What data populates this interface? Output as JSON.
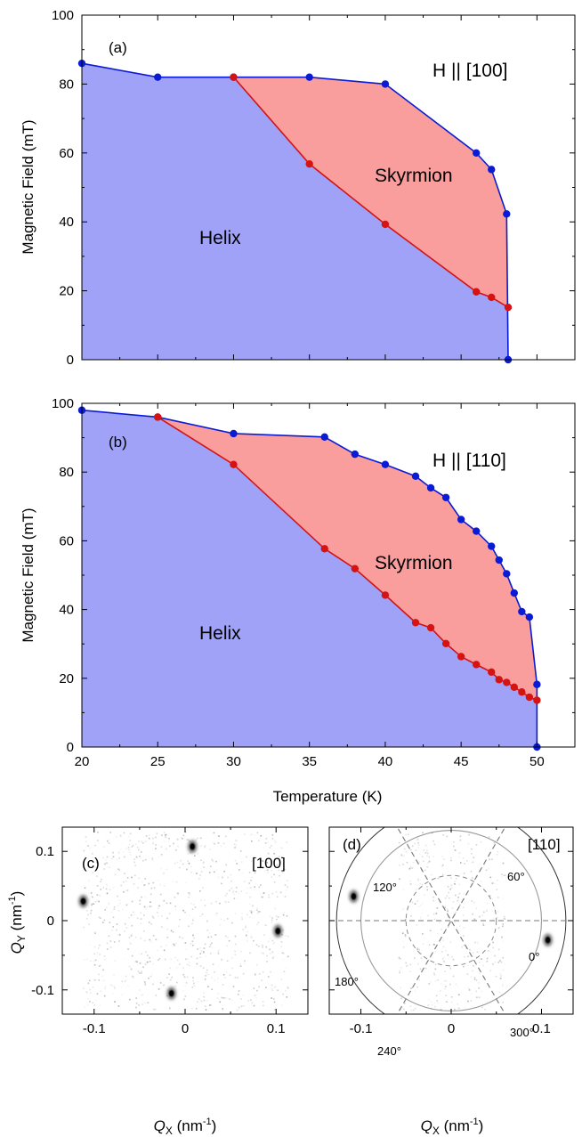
{
  "chart_data": [
    {
      "panel": "(a)",
      "type": "area",
      "annotation": "H || [100]",
      "ylabel": "Magnetic Field (mT)",
      "xlabel": "",
      "xlim": [
        20,
        52.5
      ],
      "ylim": [
        0,
        100
      ],
      "yticks": [
        "0",
        "20",
        "40",
        "60",
        "80",
        "100"
      ],
      "regions": [
        "Helix",
        "Skyrmion"
      ],
      "series": [
        {
          "name": "upper boundary",
          "color": "#0a1bd6",
          "x": [
            20,
            25,
            30,
            35,
            40,
            46,
            47,
            48,
            48.1
          ],
          "y": [
            86,
            82,
            82,
            82,
            80,
            60,
            55.2,
            42.3,
            0
          ]
        },
        {
          "name": "lower boundary",
          "color": "#d51313",
          "x": [
            30,
            35,
            40,
            46,
            47,
            48.1
          ],
          "y": [
            82,
            56.8,
            39.3,
            19.7,
            18.1,
            15.2
          ]
        }
      ]
    },
    {
      "panel": "(b)",
      "type": "area",
      "annotation": "H || [110]",
      "ylabel": "Magnetic Field (mT)",
      "xlabel": "Temperature (K)",
      "xlim": [
        20,
        52.5
      ],
      "ylim": [
        0,
        100
      ],
      "xticks": [
        "20",
        "25",
        "30",
        "35",
        "40",
        "45",
        "50"
      ],
      "yticks": [
        "0",
        "20",
        "40",
        "60",
        "80",
        "100"
      ],
      "regions": [
        "Helix",
        "Skyrmion"
      ],
      "series": [
        {
          "name": "upper boundary",
          "color": "#0a1bd6",
          "x": [
            20,
            25,
            30,
            36,
            38,
            40,
            42,
            43,
            44,
            45,
            46,
            47,
            47.5,
            48,
            48.5,
            49,
            49.5,
            50,
            50
          ],
          "y": [
            98,
            96,
            91.2,
            90.2,
            85.2,
            82.2,
            78.8,
            75.4,
            72.6,
            66.2,
            62.8,
            58.4,
            54.4,
            50.4,
            44.8,
            39.4,
            37.8,
            18.2,
            0
          ]
        },
        {
          "name": "lower boundary",
          "color": "#d51313",
          "x": [
            25,
            30,
            36,
            38,
            40,
            42,
            43,
            44,
            45,
            46,
            47,
            47.5,
            48,
            48.5,
            49,
            49.5,
            50
          ],
          "y": [
            96,
            82.2,
            57.7,
            51.9,
            44.2,
            36.2,
            34.7,
            30.1,
            26.3,
            24,
            21.8,
            19.6,
            18.8,
            17.4,
            16,
            14.5,
            13.6
          ]
        }
      ]
    },
    {
      "panel": "(c)",
      "type": "scatter",
      "annotation": "[100]",
      "xlabel_main": "Q",
      "xlabel_sub": "X",
      "xlabel_unit": " (nm",
      "xlabel_sup": "-1",
      "xlabel_end": ")",
      "ylabel_main": "Q",
      "ylabel_sub": "Y",
      "ylabel_unit": " (nm",
      "ylabel_sup": "-1",
      "ylabel_end": ")",
      "xlim": [
        -0.135,
        0.135
      ],
      "ylim": [
        -0.135,
        0.135
      ],
      "xticks": [
        "-0.1",
        "0",
        "0.1"
      ],
      "yticks": [
        "-0.1",
        "0",
        "0.1"
      ],
      "peaks": [
        {
          "x": 0.008,
          "y": 0.107
        },
        {
          "x": -0.015,
          "y": -0.105
        },
        {
          "x": -0.112,
          "y": 0.028
        },
        {
          "x": 0.102,
          "y": -0.015
        }
      ]
    },
    {
      "panel": "(d)",
      "type": "scatter",
      "annotation": "[110]",
      "xlabel_main": "Q",
      "xlabel_sub": "X",
      "xlabel_unit": " (nm",
      "xlabel_sup": "-1",
      "xlabel_end": ")",
      "xlim": [
        -0.135,
        0.135
      ],
      "ylim": [
        -0.135,
        0.135
      ],
      "xticks": [
        "-0.1",
        "0",
        "0.1"
      ],
      "angle_labels": [
        "0°",
        "60°",
        "120°",
        "180°",
        "240°",
        "300°"
      ],
      "peaks": [
        {
          "x": -0.108,
          "y": 0.035
        },
        {
          "x": 0.107,
          "y": -0.028
        }
      ]
    }
  ]
}
